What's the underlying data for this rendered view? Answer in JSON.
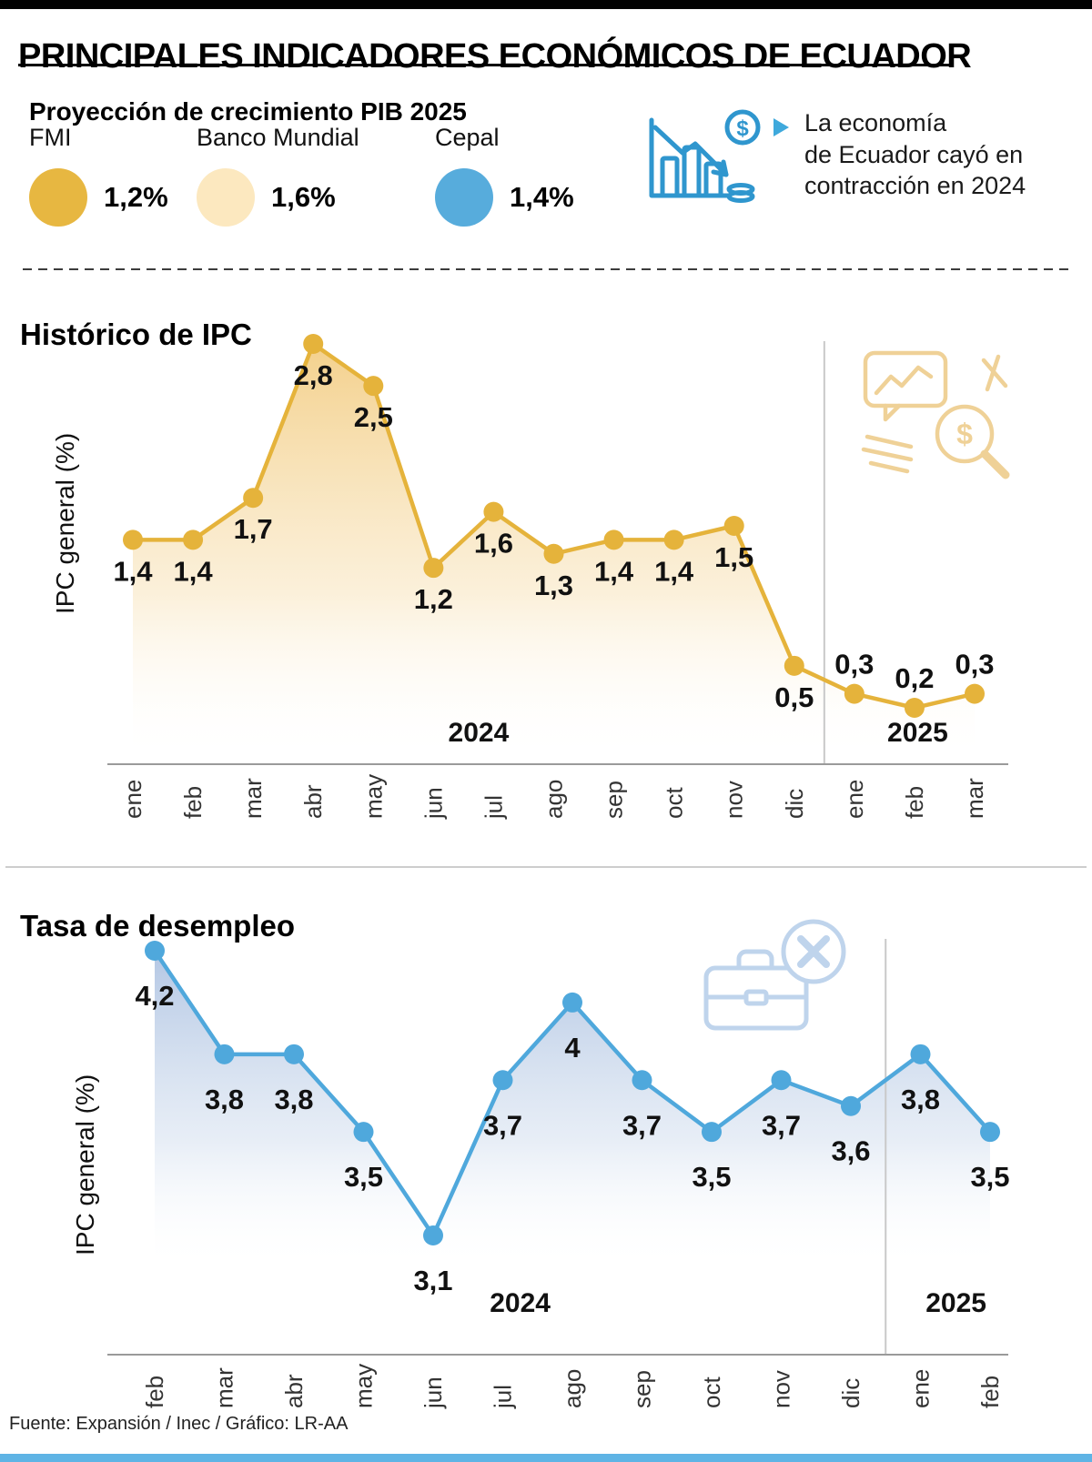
{
  "title": "PRINCIPALES INDICADORES ECONÓMICOS DE ECUADOR",
  "pib_section": {
    "heading": "Proyección de crecimiento PIB 2025",
    "legend": [
      {
        "label": "FMI",
        "value": "1,2%",
        "color": "#E7B741"
      },
      {
        "label": "Banco Mundial",
        "value": "1,6%",
        "color": "#FCE8BF"
      },
      {
        "label": "Cepal",
        "value": "1,4%",
        "color": "#57ACDC"
      }
    ],
    "note_lines": [
      "La economía",
      "de Ecuador cayó en",
      "contracción en 2024"
    ]
  },
  "chart_data": [
    {
      "type": "line",
      "title": "Histórico de IPC",
      "ylabel": "IPC general (%)",
      "categories": [
        "ene",
        "feb",
        "mar",
        "abr",
        "may",
        "jun",
        "jul",
        "ago",
        "sep",
        "oct",
        "nov",
        "dic",
        "ene",
        "feb",
        "mar"
      ],
      "values": [
        1.4,
        1.4,
        1.7,
        2.8,
        2.5,
        1.2,
        1.6,
        1.3,
        1.4,
        1.4,
        1.5,
        0.5,
        0.3,
        0.2,
        0.3
      ],
      "point_labels": [
        "1,4",
        "1,4",
        "1,7",
        "2,8",
        "2,5",
        "1,2",
        "1,6",
        "1,3",
        "1,4",
        "1,4",
        "1,5",
        "0,5",
        "0,3",
        "0,2",
        "0,3"
      ],
      "label_side": [
        "below",
        "below",
        "below",
        "below",
        "below",
        "below",
        "below",
        "below",
        "below",
        "below",
        "below",
        "below",
        "above",
        "above",
        "above"
      ],
      "years": [
        "2024",
        "2025"
      ],
      "split_index": 12,
      "ylim": [
        0.2,
        2.8
      ],
      "line_color": "#E5B33B",
      "fill_top": "#F3CE86",
      "fill_mid": "#F8E4BC",
      "legend_position": "none",
      "grid": false
    },
    {
      "type": "line",
      "title": "Tasa de desempleo",
      "ylabel": "IPC general (%)",
      "categories": [
        "feb",
        "mar",
        "abr",
        "may",
        "jun",
        "jul",
        "ago",
        "sep",
        "oct",
        "nov",
        "dic",
        "ene",
        "feb"
      ],
      "values": [
        4.2,
        3.8,
        3.8,
        3.5,
        3.1,
        3.7,
        4,
        3.7,
        3.5,
        3.7,
        3.6,
        3.8,
        3.5
      ],
      "point_labels": [
        "4,2",
        "3,8",
        "3,8",
        "3,5",
        "3,1",
        "3,7",
        "4",
        "3,7",
        "3,5",
        "3,7",
        "3,6",
        "3,8",
        "3,5"
      ],
      "label_side": [
        "below",
        "below",
        "below",
        "below",
        "below",
        "below",
        "below",
        "below",
        "below",
        "below",
        "below",
        "below",
        "below"
      ],
      "years": [
        "2024",
        "2025"
      ],
      "split_index": 11,
      "ylim": [
        3.1,
        4.2
      ],
      "line_color": "#4FA8DC",
      "fill_top": "#A6BDDF",
      "fill_mid": "#CBD9EC",
      "legend_position": "none",
      "grid": false
    }
  ],
  "footer": {
    "source": "Fuente: Expansión / Inec  / Gráfico: LR-AA"
  }
}
